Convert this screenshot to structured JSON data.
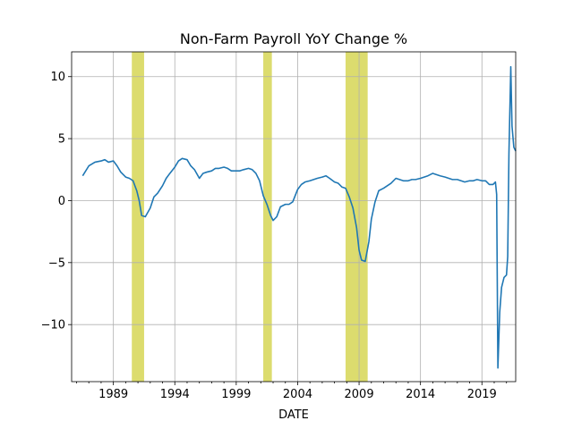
{
  "chart_data": {
    "type": "line",
    "title": "Non-Farm Payroll YoY Change %",
    "xlabel": "DATE",
    "ylabel": "",
    "xlim": [
      1985.6,
      2021.75
    ],
    "ylim": [
      -14.6,
      12.0
    ],
    "x_ticks": [
      1989,
      1994,
      1999,
      2004,
      2009,
      2014,
      2019
    ],
    "y_ticks": [
      10,
      5,
      0,
      -5,
      -10
    ],
    "grid": true,
    "colors": {
      "line": "#1f77b4",
      "recession": "#dcdc6e"
    },
    "recessions": [
      {
        "start": 1990.5,
        "end": 1991.5
      },
      {
        "start": 2001.2,
        "end": 2001.9
      },
      {
        "start": 2007.9,
        "end": 2009.7
      }
    ],
    "series": [
      {
        "x": [
          1986.5,
          1987.0,
          1987.5,
          1988.0,
          1988.3,
          1988.6,
          1989.0,
          1989.3,
          1989.6,
          1990.0,
          1990.3,
          1990.6,
          1990.9,
          1991.1,
          1991.3,
          1991.6,
          1992.0,
          1992.3,
          1992.6,
          1993.0,
          1993.3,
          1993.6,
          1994.0,
          1994.3,
          1994.6,
          1995.0,
          1995.3,
          1995.6,
          1996.0,
          1996.3,
          1996.6,
          1997.0,
          1997.3,
          1997.6,
          1998.0,
          1998.3,
          1998.6,
          1999.0,
          1999.3,
          1999.6,
          2000.0,
          2000.3,
          2000.6,
          2000.9,
          2001.2,
          2001.5,
          2001.8,
          2002.0,
          2002.3,
          2002.6,
          2003.0,
          2003.3,
          2003.6,
          2004.0,
          2004.3,
          2004.6,
          2005.0,
          2005.3,
          2005.6,
          2006.0,
          2006.3,
          2006.6,
          2007.0,
          2007.3,
          2007.6,
          2007.9,
          2008.2,
          2008.5,
          2008.8,
          2009.0,
          2009.2,
          2009.5,
          2009.8,
          2010.0,
          2010.3,
          2010.6,
          2011.0,
          2011.3,
          2011.6,
          2012.0,
          2012.3,
          2012.6,
          2013.0,
          2013.3,
          2013.6,
          2014.0,
          2014.3,
          2014.6,
          2015.0,
          2015.3,
          2015.6,
          2016.0,
          2016.3,
          2016.6,
          2017.0,
          2017.3,
          2017.6,
          2018.0,
          2018.3,
          2018.6,
          2019.0,
          2019.3,
          2019.6,
          2019.9,
          2020.1,
          2020.2,
          2020.3,
          2020.45,
          2020.6,
          2020.8,
          2021.0,
          2021.1,
          2021.2,
          2021.35,
          2021.45,
          2021.6,
          2021.75
        ],
        "y": [
          2.0,
          2.8,
          3.1,
          3.2,
          3.3,
          3.1,
          3.2,
          2.8,
          2.3,
          1.9,
          1.8,
          1.6,
          0.8,
          0.0,
          -1.2,
          -1.3,
          -0.6,
          0.3,
          0.6,
          1.2,
          1.8,
          2.2,
          2.7,
          3.2,
          3.4,
          3.3,
          2.8,
          2.5,
          1.8,
          2.2,
          2.3,
          2.4,
          2.6,
          2.6,
          2.7,
          2.6,
          2.4,
          2.4,
          2.4,
          2.5,
          2.6,
          2.5,
          2.2,
          1.6,
          0.4,
          -0.3,
          -1.2,
          -1.6,
          -1.3,
          -0.5,
          -0.3,
          -0.3,
          -0.1,
          0.9,
          1.3,
          1.5,
          1.6,
          1.7,
          1.8,
          1.9,
          2.0,
          1.8,
          1.5,
          1.4,
          1.1,
          1.0,
          0.3,
          -0.6,
          -2.2,
          -4.0,
          -4.8,
          -4.9,
          -3.3,
          -1.5,
          -0.1,
          0.8,
          1.0,
          1.2,
          1.4,
          1.8,
          1.7,
          1.6,
          1.6,
          1.7,
          1.7,
          1.8,
          1.9,
          2.0,
          2.2,
          2.1,
          2.0,
          1.9,
          1.8,
          1.7,
          1.7,
          1.6,
          1.5,
          1.6,
          1.6,
          1.7,
          1.6,
          1.6,
          1.3,
          1.3,
          1.5,
          0.5,
          -13.5,
          -9.0,
          -7.0,
          -6.2,
          -6.0,
          -4.5,
          3.8,
          10.8,
          6.0,
          4.3,
          4.0
        ]
      }
    ]
  }
}
